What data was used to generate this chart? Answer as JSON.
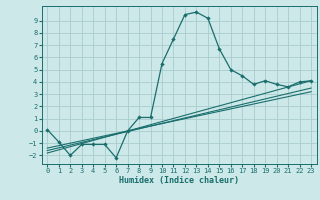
{
  "xlabel": "Humidex (Indice chaleur)",
  "bg_color": "#cde8e8",
  "grid_color": "#aacccc",
  "line_color": "#1a6e6e",
  "xlim": [
    -0.5,
    23.5
  ],
  "ylim": [
    -2.7,
    10.2
  ],
  "yticks": [
    -2,
    -1,
    0,
    1,
    2,
    3,
    4,
    5,
    6,
    7,
    8,
    9
  ],
  "xticks": [
    0,
    1,
    2,
    3,
    4,
    5,
    6,
    7,
    8,
    9,
    10,
    11,
    12,
    13,
    14,
    15,
    16,
    17,
    18,
    19,
    20,
    21,
    22,
    23
  ],
  "series1_x": [
    0,
    1,
    2,
    3,
    4,
    5,
    6,
    7,
    8,
    9,
    10,
    11,
    12,
    13,
    14,
    15,
    16,
    17,
    18,
    19,
    20,
    21,
    22,
    23
  ],
  "series1_y": [
    0.1,
    -0.9,
    -2.0,
    -1.1,
    -1.1,
    -1.1,
    -2.2,
    0.0,
    1.1,
    1.1,
    5.5,
    7.5,
    9.5,
    9.7,
    9.2,
    6.7,
    5.0,
    4.5,
    3.8,
    4.1,
    3.8,
    3.6,
    4.0,
    4.1
  ],
  "series2_x": [
    0,
    23
  ],
  "series2_y": [
    -1.8,
    4.1
  ],
  "series3_x": [
    0,
    23
  ],
  "series3_y": [
    -1.6,
    3.5
  ],
  "series4_x": [
    0,
    23
  ],
  "series4_y": [
    -1.4,
    3.2
  ]
}
